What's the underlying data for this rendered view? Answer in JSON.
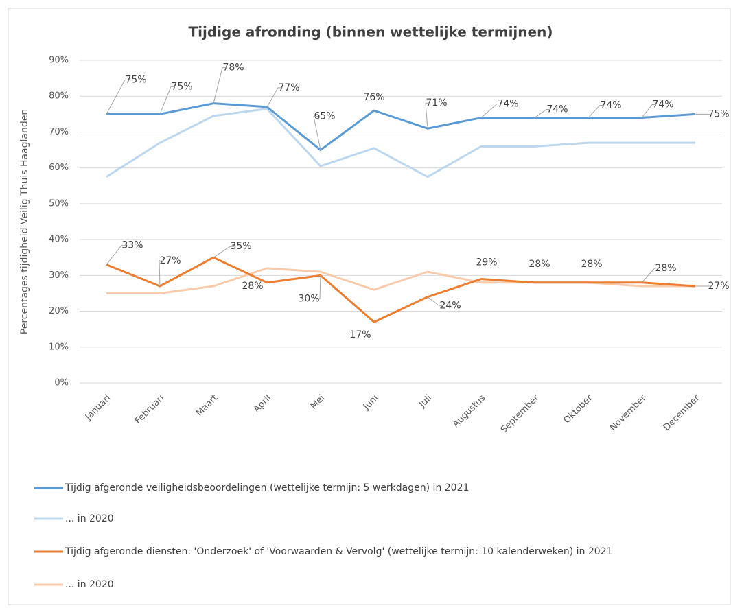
{
  "chart_data": {
    "type": "line",
    "title": "Tijdige afronding (binnen wettelijke termijnen)",
    "y_label": "Percentages tijdigheid Veilig Thuis Haaglanden",
    "categories": [
      "Januari",
      "Februari",
      "Maart",
      "April",
      "Mei",
      "Juni",
      "Juli",
      "Augustus",
      "September",
      "Oktober",
      "November",
      "December"
    ],
    "series": [
      {
        "name": "Tijdig afgeronde veiligheidsbeoordelingen (wettelijke termijn: 5 werkdagen) in 2021",
        "color": "#5b9bd5",
        "values": [
          75,
          75,
          78,
          77,
          65,
          76,
          71,
          74,
          74,
          74,
          74,
          75
        ],
        "value_labels": [
          "75%",
          "75%",
          "78%",
          "77%",
          "65%",
          "76%",
          "71%",
          "74%",
          "74%",
          "74%",
          "74%",
          "75%"
        ]
      },
      {
        "name": "... in 2020",
        "color": "#bdd7ee",
        "values": [
          57.5,
          67,
          74.5,
          76.5,
          60.5,
          65.5,
          57.5,
          66,
          66,
          67,
          67,
          67
        ]
      },
      {
        "name": "Tijdig afgeronde diensten: 'Onderzoek' of 'Voorwaarden & Vervolg' (wettelijke termijn: 10 kalenderweken) in 2021",
        "color": "#ed7d31",
        "values": [
          33,
          27,
          35,
          28,
          30,
          17,
          24,
          29,
          28,
          28,
          28,
          27
        ],
        "value_labels": [
          "33%",
          "27%",
          "35%",
          "28%",
          "30%",
          "17%",
          "24%",
          "29%",
          "28%",
          "28%",
          "28%",
          "27%"
        ]
      },
      {
        "name": "... in 2020",
        "color": "#f8cbad",
        "values": [
          25,
          25,
          27,
          32,
          31,
          26,
          31,
          28,
          28,
          28,
          27,
          27
        ]
      }
    ],
    "ylim": [
      0,
      90
    ],
    "yticks": [
      {
        "value": 0,
        "label": "0%"
      },
      {
        "value": 10,
        "label": "10%"
      },
      {
        "value": 20,
        "label": "20%"
      },
      {
        "value": 30,
        "label": "30%"
      },
      {
        "value": 40,
        "label": "40%"
      },
      {
        "value": 50,
        "label": "50%"
      },
      {
        "value": 60,
        "label": "60%"
      },
      {
        "value": 70,
        "label": "70%"
      },
      {
        "value": 80,
        "label": "80%"
      },
      {
        "value": 90,
        "label": "90%"
      }
    ],
    "grid": true
  }
}
